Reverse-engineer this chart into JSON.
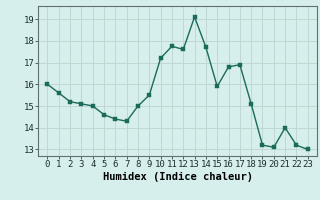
{
  "x": [
    0,
    1,
    2,
    3,
    4,
    5,
    6,
    7,
    8,
    9,
    10,
    11,
    12,
    13,
    14,
    15,
    16,
    17,
    18,
    19,
    20,
    21,
    22,
    23
  ],
  "y": [
    16.0,
    15.6,
    15.2,
    15.1,
    15.0,
    14.6,
    14.4,
    14.3,
    15.0,
    15.5,
    17.2,
    17.75,
    17.6,
    19.1,
    17.7,
    15.9,
    16.8,
    16.9,
    15.1,
    13.2,
    13.1,
    14.0,
    13.2,
    13.0
  ],
  "xlabel": "Humidex (Indice chaleur)",
  "ylim": [
    12.7,
    19.6
  ],
  "yticks": [
    13,
    14,
    15,
    16,
    17,
    18,
    19
  ],
  "xticks": [
    0,
    1,
    2,
    3,
    4,
    5,
    6,
    7,
    8,
    9,
    10,
    11,
    12,
    13,
    14,
    15,
    16,
    17,
    18,
    19,
    20,
    21,
    22,
    23
  ],
  "line_color": "#1a6b5a",
  "marker_color": "#1a6b5a",
  "bg_color": "#d6eeec",
  "grid_color": "#c0d8d4",
  "tick_fontsize": 6.5,
  "xlabel_fontsize": 7.5,
  "marker_size": 2.5,
  "line_width": 1.0
}
